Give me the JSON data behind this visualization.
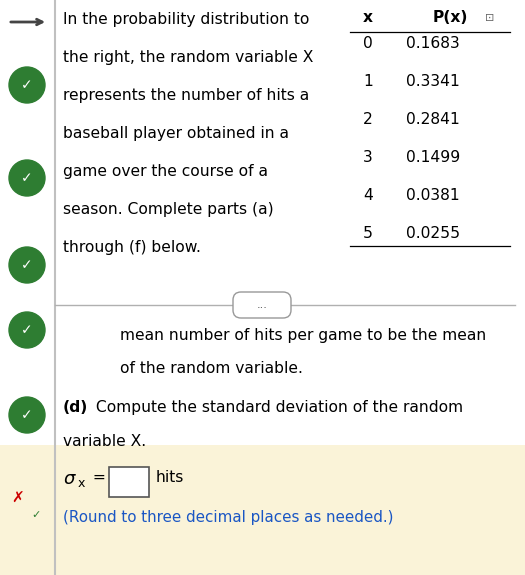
{
  "background_color": "#ffffff",
  "bottom_highlight_color": "#faf3d8",
  "arrow_color": "#444444",
  "check_color": "#2e7d32",
  "x_mark_color": "#cc0000",
  "x_values": [
    0,
    1,
    2,
    3,
    4,
    5
  ],
  "p_values": [
    "0.1683",
    "0.3341",
    "0.2841",
    "0.1499",
    "0.0381",
    "0.0255"
  ],
  "table_header_x": "x",
  "table_header_px": "P(x)",
  "main_text_lines": [
    "In the probability distribution to",
    "the right, the random variable X",
    "represents the number of hits a",
    "baseball player obtained in a",
    "game over the course of a",
    "season. Complete parts (a)",
    "through (f) below."
  ],
  "ellipsis_text": "...",
  "continuation_text_lines": [
    "mean number of hits per game to be the mean",
    "of the random variable."
  ],
  "part_d_bold": "(d)",
  "part_d_text": " Compute the standard deviation of the random",
  "part_d_text2": "variable X.",
  "sigma_label": "σ",
  "sigma_subscript": "x",
  "hits_label": "hits",
  "round_note": "(Round to three decimal places as needed.)",
  "round_note_color": "#1a56c4",
  "sidebar_line_color": "#c0c0c0",
  "font_size_main": 11.2,
  "font_size_table": 11.2
}
